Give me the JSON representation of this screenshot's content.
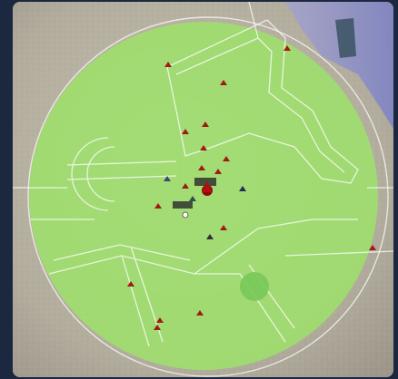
{
  "map": {
    "region": "terrain-map-with-circular-range",
    "range_overlay_color": "#9ee06a",
    "range_ring_color": "#ffffff",
    "water_color": "#8c8fc8",
    "terrain_color": "#b9b3a4",
    "zone_color": "#6fbf6a"
  },
  "markers": [
    {
      "name": "aircraft-marker",
      "kind": "hostile",
      "color": "#a01c12"
    },
    {
      "name": "aircraft-marker",
      "kind": "friendly",
      "color": "#1f2f5a"
    },
    {
      "name": "aircraft-marker",
      "kind": "selected",
      "color": "#8a0a0a"
    }
  ],
  "labels": {
    "cluster_label_1": "",
    "cluster_label_2": ""
  }
}
